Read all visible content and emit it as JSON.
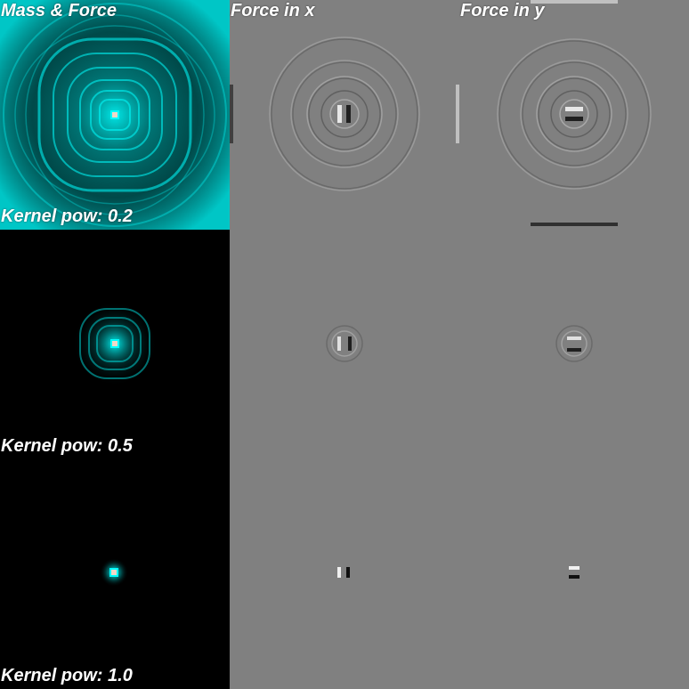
{
  "columns": {
    "mass_force": "Mass & Force",
    "force_x": "Force in x",
    "force_y": "Force in y"
  },
  "rows": [
    {
      "kernel_label": "Kernel pow: 0.2",
      "kernel_pow": 0.2
    },
    {
      "kernel_label": "Kernel pow: 0.5",
      "kernel_pow": 0.5
    },
    {
      "kernel_label": "Kernel pow: 1.0",
      "kernel_pow": 1.0
    }
  ],
  "colors": {
    "mass_color": "#00e5e5",
    "force_background": "#808080",
    "mass_background": "#000000",
    "center_marker": "#f0d8c8"
  }
}
